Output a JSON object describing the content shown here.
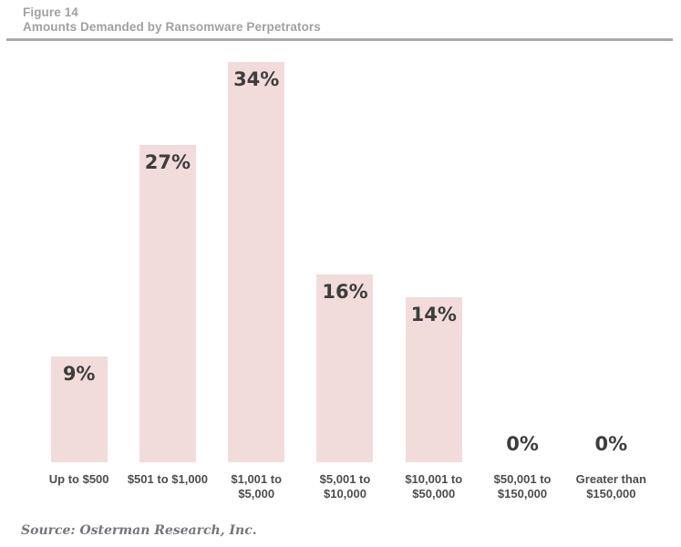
{
  "header": {
    "figure_label": "Figure 14",
    "title": "Amounts Demanded by Ransomware Perpetrators"
  },
  "footer": {
    "source": "Source: Osterman Research, Inc."
  },
  "chart_data": {
    "type": "bar",
    "title": "Amounts Demanded by Ransomware Perpetrators",
    "figure_label": "Figure 14",
    "categories": [
      "Up to $500",
      "$501 to $1,000",
      "$1,001 to $5,000",
      "$5,001 to $10,000",
      "$10,001 to $50,000",
      "$50,001 to $150,000",
      "Greater than $150,000"
    ],
    "values": [
      9,
      27,
      34,
      16,
      14,
      0,
      0
    ],
    "value_labels": [
      "9%",
      "27%",
      "34%",
      "16%",
      "14%",
      "0%",
      "0%"
    ],
    "unit": "percent",
    "ylim": [
      0,
      34.5
    ],
    "grid": false,
    "legend": false,
    "y_axis_shown": false,
    "value_label_position": "inside-top, above-baseline-when-zero",
    "bar_color": "#f2dcdb",
    "value_label_color": "#3d3d3d",
    "category_label_color": "#4d4d4d",
    "source": "Source: Osterman Research, Inc."
  }
}
